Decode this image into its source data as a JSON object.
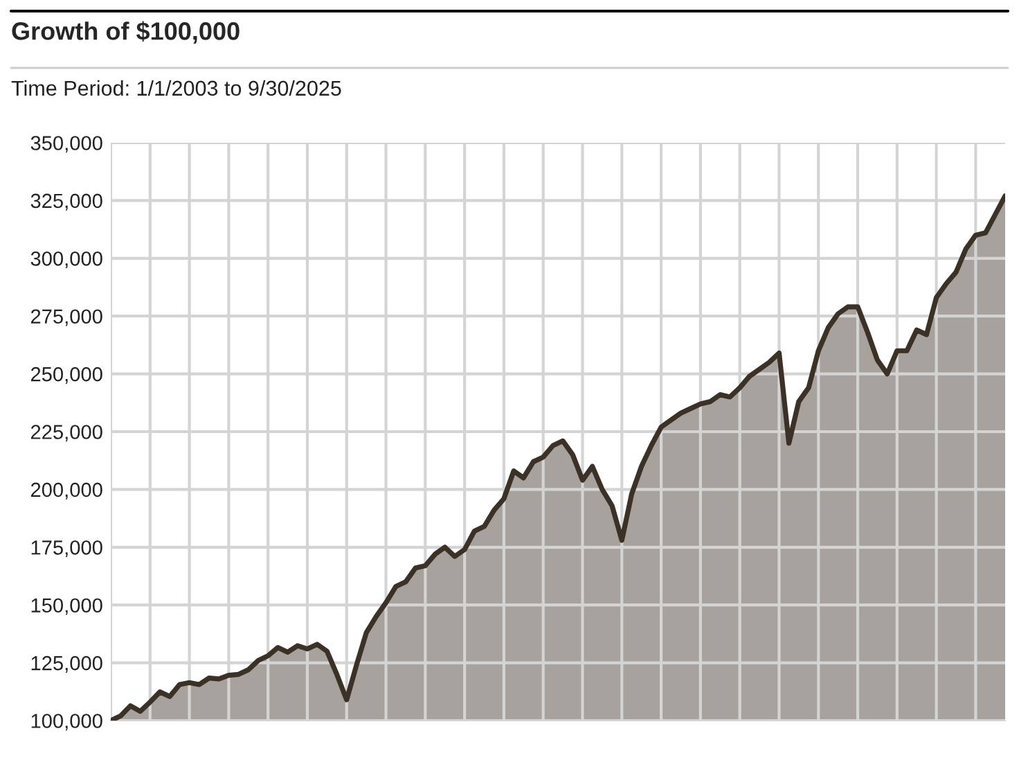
{
  "chart_data": {
    "type": "area",
    "title": "Growth of $100,000",
    "subtitle": "Time Period: 1/1/2003 to 9/30/2025",
    "categories": [
      null,
      null,
      null,
      null,
      null,
      null,
      null,
      null,
      null,
      null,
      null,
      null,
      null,
      null,
      null,
      null,
      null,
      null,
      null,
      null,
      null,
      null,
      null,
      null,
      null,
      null,
      null,
      null,
      null,
      null,
      null,
      null,
      null,
      null,
      null,
      null,
      null,
      null,
      null,
      null,
      null,
      null,
      null,
      null,
      null,
      null,
      null,
      null,
      null,
      null,
      null,
      null,
      null,
      null,
      null,
      null,
      null,
      null,
      null,
      null,
      null,
      null,
      null,
      null,
      null,
      null,
      null,
      null,
      null,
      null,
      null,
      null,
      null,
      null,
      null,
      null,
      null,
      null,
      null,
      null,
      null,
      null,
      null,
      null,
      null,
      null,
      null,
      null,
      null,
      null,
      null,
      null
    ],
    "series": [
      {
        "color": "#3b3127",
        "values": [
          100000,
          102000,
          106400,
          104000,
          108000,
          112400,
          110400,
          115600,
          116400,
          115600,
          118400,
          118000,
          119600,
          120000,
          122000,
          126000,
          128000,
          131600,
          129600,
          132400,
          131000,
          133000,
          130000,
          120000,
          109000,
          124000,
          138000,
          145000,
          151000,
          158000,
          160000,
          166000,
          167000,
          172000,
          175000,
          171000,
          174000,
          182000,
          184000,
          191000,
          196000,
          208000,
          205000,
          212000,
          214000,
          219000,
          221000,
          215000,
          204000,
          210000,
          200000,
          193000,
          178000,
          198000,
          210000,
          219000,
          227000,
          230000,
          233000,
          235000,
          237000,
          238000,
          241000,
          240000,
          244000,
          249000,
          252000,
          255000,
          259000,
          220000,
          238000,
          244000,
          260000,
          270000,
          276000,
          279000,
          279000,
          268000,
          256000,
          250000,
          260000,
          260000,
          269000,
          267000,
          283000,
          289000,
          294000,
          304000,
          310000,
          311000,
          319000,
          327000
        ]
      }
    ],
    "ylim": [
      100000,
      350000
    ],
    "yticks": [
      {
        "value": 100000,
        "label": "100,000"
      },
      {
        "value": 125000,
        "label": "125,000"
      },
      {
        "value": 150000,
        "label": "150,000"
      },
      {
        "value": 175000,
        "label": "175,000"
      },
      {
        "value": 200000,
        "label": "200,000"
      },
      {
        "value": 225000,
        "label": "225,000"
      },
      {
        "value": 250000,
        "label": "250,000"
      },
      {
        "value": 275000,
        "label": "275,000"
      },
      {
        "value": 300000,
        "label": "300,000"
      },
      {
        "value": 325000,
        "label": "325,000"
      },
      {
        "value": 350000,
        "label": "350,000"
      }
    ],
    "grid": true,
    "tick_labels": "y"
  }
}
